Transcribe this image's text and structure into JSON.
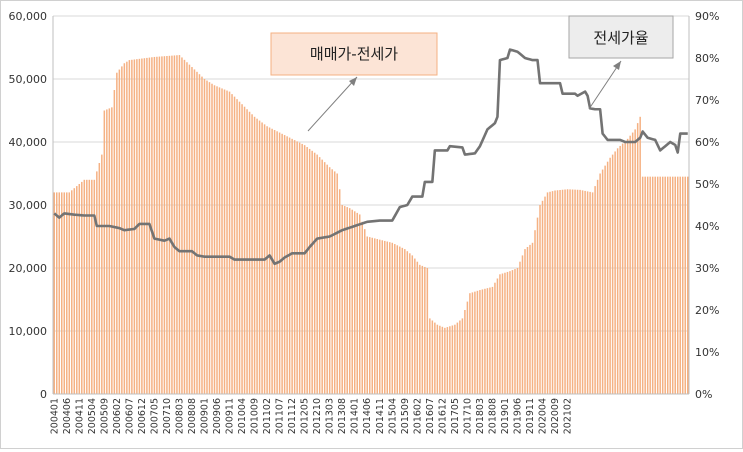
{
  "chart_data": {
    "type": "bar+line",
    "y_left": {
      "ticks": [
        "0",
        "10,000",
        "20,000",
        "30,000",
        "40,000",
        "50,000",
        "60,000"
      ],
      "min": 0,
      "max": 60000
    },
    "y_right": {
      "ticks": [
        "0%",
        "10%",
        "20%",
        "30%",
        "40%",
        "50%",
        "60%",
        "70%",
        "80%",
        "90%"
      ],
      "min": 0,
      "max": 90
    },
    "grid": true,
    "x_tick_labels": [
      "200401",
      "200406",
      "200411",
      "200504",
      "200509",
      "200602",
      "200607",
      "200612",
      "200705",
      "200710",
      "200803",
      "200808",
      "200901",
      "200906",
      "200911",
      "201004",
      "201009",
      "201102",
      "201107",
      "201112",
      "201205",
      "201210",
      "201303",
      "201308",
      "201401",
      "201406",
      "201411",
      "201504",
      "201509",
      "201602",
      "201607",
      "201612",
      "201705",
      "201710",
      "201803",
      "201808",
      "201901",
      "201906",
      "201911",
      "202004",
      "202009",
      "202102"
    ],
    "series": [
      {
        "name": "매매가-전세가",
        "kind": "bar",
        "axis": "left",
        "color": "#f5b183",
        "points": [
          [
            0,
            32000
          ],
          [
            6,
            32000
          ],
          [
            9,
            33000
          ],
          [
            12,
            34000
          ],
          [
            16,
            34000
          ],
          [
            19,
            38000
          ],
          [
            20,
            45000
          ],
          [
            23,
            45500
          ],
          [
            25,
            51000
          ],
          [
            28,
            52500
          ],
          [
            30,
            53000
          ],
          [
            40,
            53500
          ],
          [
            50,
            53800
          ],
          [
            60,
            50000
          ],
          [
            64,
            49000
          ],
          [
            70,
            48000
          ],
          [
            75,
            46000
          ],
          [
            80,
            44000
          ],
          [
            85,
            42500
          ],
          [
            90,
            41500
          ],
          [
            95,
            40500
          ],
          [
            100,
            39500
          ],
          [
            105,
            38000
          ],
          [
            110,
            36000
          ],
          [
            113,
            35000
          ],
          [
            115,
            30000
          ],
          [
            118,
            29500
          ],
          [
            122,
            28500
          ],
          [
            125,
            25000
          ],
          [
            130,
            24500
          ],
          [
            135,
            24000
          ],
          [
            140,
            23000
          ],
          [
            143,
            22000
          ],
          [
            146,
            20500
          ],
          [
            149,
            20000
          ],
          [
            150,
            12000
          ],
          [
            153,
            11000
          ],
          [
            156,
            10500
          ],
          [
            160,
            11000
          ],
          [
            163,
            12000
          ],
          [
            166,
            16000
          ],
          [
            170,
            16500
          ],
          [
            175,
            17000
          ],
          [
            178,
            19000
          ],
          [
            182,
            19500
          ],
          [
            185,
            20000
          ],
          [
            188,
            23000
          ],
          [
            191,
            24000
          ],
          [
            194,
            30000
          ],
          [
            197,
            32000
          ],
          [
            200,
            32300
          ],
          [
            205,
            32500
          ],
          [
            210,
            32400
          ],
          [
            215,
            32000
          ],
          [
            218,
            35000
          ],
          [
            222,
            37500
          ],
          [
            225,
            39000
          ],
          [
            229,
            40500
          ],
          [
            232,
            42000
          ],
          [
            234,
            44000
          ],
          [
            235,
            34500
          ]
        ]
      },
      {
        "name": "전세가율",
        "kind": "line",
        "axis": "right",
        "color": "#737373",
        "points": [
          [
            0,
            43
          ],
          [
            2,
            42
          ],
          [
            4,
            43
          ],
          [
            8,
            42.7
          ],
          [
            12,
            42.5
          ],
          [
            16,
            42.5
          ],
          [
            17,
            40
          ],
          [
            22,
            40
          ],
          [
            26,
            39.5
          ],
          [
            28,
            39
          ],
          [
            32,
            39.3
          ],
          [
            34,
            40.5
          ],
          [
            38,
            40.5
          ],
          [
            40,
            37
          ],
          [
            44,
            36.5
          ],
          [
            46,
            37
          ],
          [
            48,
            35
          ],
          [
            50,
            34
          ],
          [
            52,
            34
          ],
          [
            55,
            34
          ],
          [
            57,
            33
          ],
          [
            60,
            32.7
          ],
          [
            65,
            32.7
          ],
          [
            70,
            32.7
          ],
          [
            72,
            32
          ],
          [
            80,
            32
          ],
          [
            84,
            32
          ],
          [
            86,
            33
          ],
          [
            88,
            31
          ],
          [
            90,
            31.5
          ],
          [
            92,
            32.5
          ],
          [
            95,
            33.5
          ],
          [
            100,
            33.5
          ],
          [
            102,
            35
          ],
          [
            105,
            37
          ],
          [
            110,
            37.5
          ],
          [
            115,
            39
          ],
          [
            120,
            40
          ],
          [
            125,
            41
          ],
          [
            130,
            41.3
          ],
          [
            135,
            41.3
          ],
          [
            138,
            44.5
          ],
          [
            141,
            45
          ],
          [
            143,
            47
          ],
          [
            147,
            47
          ],
          [
            148,
            50.5
          ],
          [
            151,
            50.5
          ],
          [
            152,
            58
          ],
          [
            157,
            58
          ],
          [
            158,
            59
          ],
          [
            163,
            58.7
          ],
          [
            164,
            57
          ],
          [
            168,
            57.3
          ],
          [
            170,
            59
          ],
          [
            173,
            63
          ],
          [
            176,
            64.5
          ],
          [
            177,
            66
          ],
          [
            178,
            79.5
          ],
          [
            181,
            80
          ],
          [
            182,
            82
          ],
          [
            185,
            81.5
          ],
          [
            188,
            80
          ],
          [
            191,
            79.5
          ],
          [
            193,
            79.5
          ],
          [
            194,
            74
          ],
          [
            202,
            74
          ],
          [
            203,
            71.5
          ],
          [
            208,
            71.5
          ],
          [
            209,
            71
          ],
          [
            212,
            72
          ],
          [
            213,
            71
          ],
          [
            214,
            68
          ],
          [
            216,
            67.8
          ],
          [
            218,
            67.8
          ],
          [
            219,
            62
          ],
          [
            221,
            60.5
          ],
          [
            226,
            60.5
          ],
          [
            228,
            60
          ],
          [
            232,
            60
          ],
          [
            233,
            60.5
          ],
          [
            234,
            61
          ],
          [
            235,
            62.5
          ],
          [
            237,
            61
          ],
          [
            240,
            60.5
          ],
          [
            242,
            58
          ],
          [
            244,
            59
          ],
          [
            246,
            60
          ],
          [
            248,
            59.3
          ],
          [
            249,
            57.5
          ],
          [
            250,
            62
          ]
        ]
      }
    ],
    "annotations": [
      {
        "text": "매매가-전세가",
        "box_color": "#fce4d6",
        "border_color": "#f4b183"
      },
      {
        "text": "전세가율",
        "box_color": "#ededed",
        "border_color": "#a6a6a6"
      }
    ]
  }
}
